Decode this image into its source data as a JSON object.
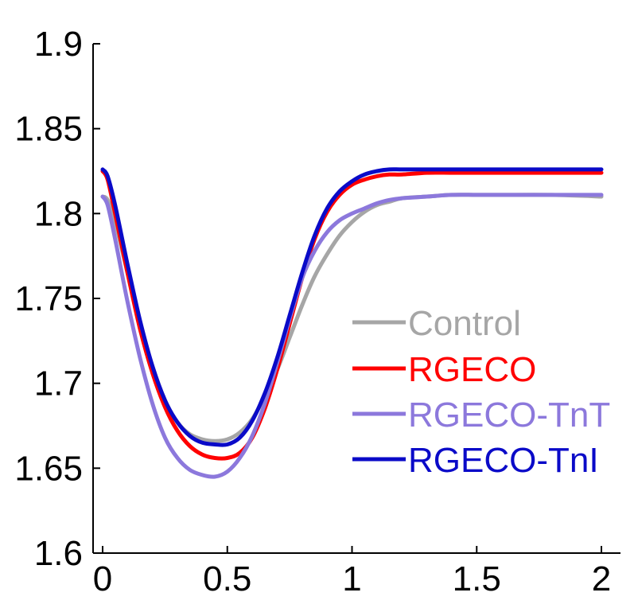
{
  "chart_data": {
    "type": "line",
    "title": "",
    "xlabel": "",
    "ylabel": "",
    "xlim": [
      0,
      2
    ],
    "ylim": [
      1.6,
      1.9
    ],
    "xticks": [
      "0",
      "0.5",
      "1",
      "1.5",
      "2"
    ],
    "yticks": [
      "1.6",
      "1.65",
      "1.7",
      "1.75",
      "1.8",
      "1.85",
      "1.9"
    ],
    "grid": false,
    "legend_position": "right",
    "series": [
      {
        "name": "Control",
        "color": "#a6a6a6",
        "x": [
          0,
          0.02,
          0.05,
          0.1,
          0.15,
          0.2,
          0.25,
          0.3,
          0.35,
          0.4,
          0.45,
          0.5,
          0.55,
          0.6,
          0.65,
          0.7,
          0.75,
          0.8,
          0.85,
          0.9,
          0.95,
          1.0,
          1.05,
          1.1,
          1.15,
          1.2,
          1.3,
          1.4,
          1.5,
          1.6,
          1.8,
          2.0
        ],
        "y": [
          1.81,
          1.808,
          1.795,
          1.765,
          1.735,
          1.71,
          1.69,
          1.677,
          1.67,
          1.667,
          1.666,
          1.667,
          1.671,
          1.679,
          1.692,
          1.708,
          1.727,
          1.746,
          1.763,
          1.776,
          1.787,
          1.795,
          1.801,
          1.805,
          1.807,
          1.809,
          1.81,
          1.811,
          1.811,
          1.811,
          1.811,
          1.81
        ]
      },
      {
        "name": "RGECO",
        "color": "#ff0000",
        "x": [
          0,
          0.02,
          0.05,
          0.1,
          0.15,
          0.2,
          0.25,
          0.3,
          0.35,
          0.4,
          0.45,
          0.5,
          0.55,
          0.6,
          0.65,
          0.7,
          0.75,
          0.8,
          0.85,
          0.9,
          0.95,
          1.0,
          1.05,
          1.1,
          1.15,
          1.2,
          1.3,
          1.4,
          1.5,
          1.6,
          1.8,
          2.0
        ],
        "y": [
          1.825,
          1.82,
          1.8,
          1.765,
          1.732,
          1.706,
          1.686,
          1.672,
          1.663,
          1.658,
          1.656,
          1.656,
          1.659,
          1.668,
          1.685,
          1.708,
          1.735,
          1.762,
          1.785,
          1.801,
          1.811,
          1.817,
          1.82,
          1.822,
          1.823,
          1.823,
          1.824,
          1.824,
          1.824,
          1.824,
          1.824,
          1.824
        ]
      },
      {
        "name": "RGECO-TnT",
        "color": "#8c78dc",
        "x": [
          0,
          0.02,
          0.05,
          0.1,
          0.15,
          0.2,
          0.25,
          0.3,
          0.35,
          0.4,
          0.45,
          0.5,
          0.55,
          0.6,
          0.65,
          0.7,
          0.75,
          0.8,
          0.85,
          0.9,
          0.95,
          1.0,
          1.05,
          1.1,
          1.15,
          1.2,
          1.3,
          1.4,
          1.5,
          1.6,
          1.8,
          2.0
        ],
        "y": [
          1.81,
          1.805,
          1.785,
          1.748,
          1.715,
          1.688,
          1.668,
          1.656,
          1.649,
          1.646,
          1.645,
          1.648,
          1.656,
          1.669,
          1.688,
          1.712,
          1.738,
          1.762,
          1.778,
          1.789,
          1.796,
          1.8,
          1.803,
          1.806,
          1.808,
          1.809,
          1.81,
          1.811,
          1.811,
          1.811,
          1.811,
          1.811
        ]
      },
      {
        "name": "RGECO-TnI",
        "color": "#0a0ac8",
        "x": [
          0,
          0.02,
          0.05,
          0.1,
          0.15,
          0.2,
          0.25,
          0.3,
          0.35,
          0.4,
          0.45,
          0.5,
          0.55,
          0.6,
          0.65,
          0.7,
          0.75,
          0.8,
          0.85,
          0.9,
          0.95,
          1.0,
          1.05,
          1.1,
          1.15,
          1.2,
          1.3,
          1.4,
          1.5,
          1.6,
          1.8,
          2.0
        ],
        "y": [
          1.826,
          1.822,
          1.805,
          1.77,
          1.737,
          1.71,
          1.69,
          1.677,
          1.669,
          1.665,
          1.664,
          1.664,
          1.668,
          1.678,
          1.694,
          1.715,
          1.74,
          1.765,
          1.787,
          1.803,
          1.813,
          1.819,
          1.823,
          1.825,
          1.826,
          1.826,
          1.826,
          1.826,
          1.826,
          1.826,
          1.826,
          1.826
        ]
      }
    ]
  }
}
